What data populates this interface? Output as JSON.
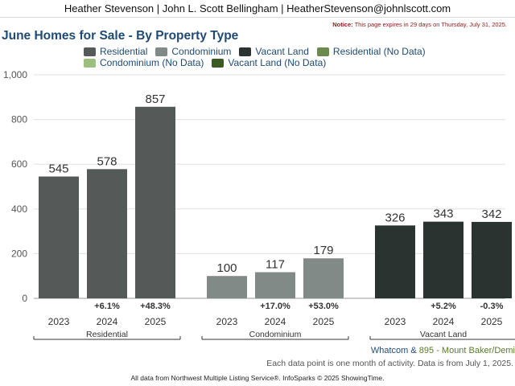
{
  "header": {
    "text": "Heather Stevenson | John L. Scott Bellingham | HeatherStevenson@johnlscott.com"
  },
  "notice": {
    "label": "Notice:",
    "text": " This page expires in 29 days on Thursday, July 31, 2025."
  },
  "legend": [
    {
      "label": "Residential",
      "color": "#555a58"
    },
    {
      "label": "Condominium",
      "color": "#818a87"
    },
    {
      "label": "Vacant Land",
      "color": "#2b3330"
    },
    {
      "label": "Residential (No Data)",
      "color": "#6a8a4e"
    },
    {
      "label": "Condominium (No Data)",
      "color": "#9cbf7e"
    },
    {
      "label": "Vacant Land (No Data)",
      "color": "#3a5a22"
    }
  ],
  "footnote": {
    "place": "Whatcom",
    "joiner": " & ",
    "muni": "895 - Mount Baker/Demi",
    "period": "Each data point is one month of activity. Data is from July 1, 2025."
  },
  "footer": {
    "text": "All data from Northwest Multiple Listing Service®. InfoSparks © 2025 ShowingTime."
  },
  "chart_data": {
    "type": "bar",
    "title": "June Homes for Sale - By Property Type",
    "ylim": [
      0,
      1000
    ],
    "yticks": [
      "0",
      "200",
      "400",
      "600",
      "800",
      "1,000"
    ],
    "yticks_values": [
      0,
      200,
      400,
      600,
      800,
      1000
    ],
    "grid": true,
    "groups": [
      {
        "name": "Residential",
        "color": "#555a58",
        "categories": [
          "2023",
          "2024",
          "2025"
        ],
        "values": [
          545,
          578,
          857
        ],
        "changes": [
          "",
          "+6.1%",
          "+48.3%"
        ]
      },
      {
        "name": "Condominium",
        "color": "#818a87",
        "categories": [
          "2023",
          "2024",
          "2025"
        ],
        "values": [
          100,
          117,
          179
        ],
        "changes": [
          "",
          "+17.0%",
          "+53.0%"
        ]
      },
      {
        "name": "Vacant Land",
        "color": "#2b3330",
        "categories": [
          "2023",
          "2024",
          "2025"
        ],
        "values": [
          326,
          343,
          342
        ],
        "changes": [
          "",
          "+5.2%",
          "-0.3%"
        ]
      }
    ]
  }
}
